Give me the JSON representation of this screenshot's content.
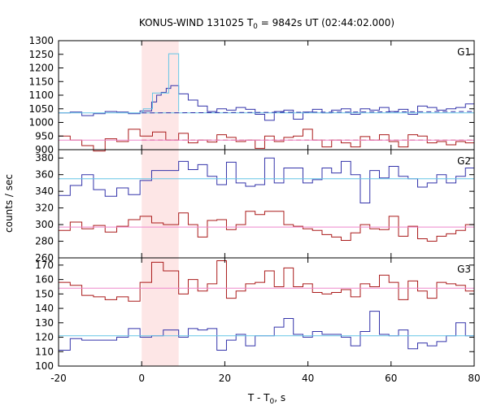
{
  "chart_data": {
    "type": "line",
    "title": "KONUS-WIND 131025 T",
    "title_sub": "0",
    "title_tail": " = 9842s UT (02:44:02.000)",
    "xlabel": "T - T",
    "xlabel_sub": "0",
    "xlabel_tail": ", s",
    "ylabel": "counts / sec",
    "xlim": [
      -20,
      80
    ],
    "x_ticks": [
      "-20",
      "0",
      "20",
      "40",
      "60",
      "80"
    ],
    "x_tick_values": [
      -20,
      0,
      20,
      40,
      60,
      80
    ],
    "highlight_region": [
      0,
      8.9
    ],
    "grid": false,
    "colors": {
      "blue": "#3333aa",
      "red": "#aa1a1a",
      "cyan": "#66c6e6",
      "pink": "#ee88cc",
      "highlight": "#fde6e6"
    },
    "panels": [
      {
        "name": "G1",
        "ylim": [
          900,
          1300
        ],
        "y_ticks": [
          "900",
          "950",
          "1000",
          "1050",
          "1100",
          "1150",
          "1200",
          "1250",
          "1300"
        ],
        "y_tick_values": [
          900,
          950,
          1000,
          1050,
          1100,
          1150,
          1200,
          1250,
          1300
        ],
        "series": [
          {
            "role": "blue-step",
            "color": "blue",
            "x": [
              -20,
              -17.2,
              -14.4,
              -11.6,
              -8.8,
              -6,
              -3.2,
              -0.4,
              2.4,
              3.6,
              4.7,
              5.9,
              7,
              8.2,
              8.9,
              11.2,
              13.5,
              15.8,
              18.1,
              20.4,
              22.7,
              25,
              27.3,
              29.6,
              31.9,
              34.2,
              36.5,
              38.8,
              41.1,
              43.4,
              45.7,
              48,
              50.3,
              52.6,
              54.9,
              57.2,
              59.5,
              61.8,
              64.1,
              66.4,
              68.7,
              71,
              73.3,
              75.6,
              77.9,
              80
            ],
            "values": [
              1035,
              1038,
              1025,
              1032,
              1040,
              1038,
              1032,
              1042,
              1075,
              1100,
              1110,
              1125,
              1135,
              1135,
              1105,
              1082,
              1060,
              1040,
              1050,
              1045,
              1055,
              1048,
              1030,
              1008,
              1040,
              1045,
              1012,
              1038,
              1048,
              1035,
              1045,
              1050,
              1030,
              1050,
              1045,
              1055,
              1040,
              1048,
              1030,
              1060,
              1055,
              1045,
              1050,
              1055,
              1068,
              1055
            ]
          },
          {
            "role": "cyan-step",
            "color": "cyan",
            "x": [
              0,
              0.4,
              2.6,
              5,
              6.5,
              8.9
            ],
            "values": [
              1040,
              1050,
              1108,
              1108,
              1252,
              1040
            ]
          },
          {
            "role": "red-step",
            "color": "red",
            "x": [
              -20,
              -17.2,
              -14.4,
              -11.6,
              -8.8,
              -6,
              -3.2,
              -0.4,
              2.6,
              5.8,
              8.9,
              11.2,
              13.5,
              15.8,
              18.1,
              20.4,
              22.7,
              25,
              27.3,
              29.6,
              31.9,
              34.2,
              36.5,
              38.8,
              41.1,
              43.4,
              45.7,
              48,
              50.3,
              52.6,
              54.9,
              57.2,
              59.5,
              61.8,
              64.1,
              66.4,
              68.7,
              71,
              73.3,
              75.6,
              77.9,
              80
            ],
            "values": [
              950,
              935,
              915,
              895,
              940,
              930,
              975,
              950,
              965,
              935,
              960,
              925,
              935,
              928,
              955,
              945,
              930,
              935,
              905,
              950,
              930,
              945,
              950,
              975,
              935,
              910,
              935,
              925,
              910,
              948,
              935,
              955,
              930,
              910,
              955,
              950,
              925,
              930,
              918,
              930,
              925,
              930
            ]
          },
          {
            "role": "cyan-mean",
            "color": "cyan",
            "x": [
              -20,
              80
            ],
            "values": [
              1035,
              1035
            ]
          },
          {
            "role": "navy-mean-dashed",
            "color": "blue",
            "x": [
              0,
              80
            ],
            "values": [
              1035,
              1040
            ]
          },
          {
            "role": "red-mean-dashed",
            "color": "red",
            "x": [
              0,
              80
            ],
            "values": [
              935,
              935
            ]
          },
          {
            "role": "pink-mean",
            "color": "pink",
            "x": [
              -20,
              80
            ],
            "values": [
              935,
              935
            ]
          }
        ]
      },
      {
        "name": "G2",
        "ylim": [
          260,
          390
        ],
        "y_ticks": [
          "260",
          "280",
          "300",
          "320",
          "340",
          "360",
          "380"
        ],
        "y_tick_values": [
          260,
          280,
          300,
          320,
          340,
          360,
          380
        ],
        "series": [
          {
            "role": "blue-step",
            "color": "blue",
            "x": [
              -20,
              -17.2,
              -14.4,
              -11.6,
              -8.8,
              -6,
              -3.2,
              -0.4,
              2.4,
              5.2,
              8.9,
              11.2,
              13.5,
              15.8,
              18.1,
              20.4,
              22.7,
              25,
              27.3,
              29.6,
              31.9,
              34.2,
              36.5,
              38.8,
              41.1,
              43.4,
              45.7,
              48,
              50.3,
              52.6,
              54.9,
              57.2,
              59.5,
              61.8,
              64.1,
              66.4,
              68.7,
              71,
              73.3,
              75.6,
              77.9,
              80
            ],
            "values": [
              335,
              347,
              360,
              342,
              334,
              344,
              336,
              353,
              365,
              365,
              376,
              366,
              372,
              358,
              348,
              375,
              350,
              346,
              348,
              380,
              350,
              368,
              368,
              350,
              354,
              368,
              362,
              376,
              360,
              326,
              365,
              356,
              370,
              358,
              355,
              345,
              350,
              360,
              350,
              358,
              368,
              360
            ]
          },
          {
            "role": "red-step",
            "color": "red",
            "x": [
              -20,
              -17.2,
              -14.4,
              -11.6,
              -8.8,
              -6,
              -3.2,
              -0.4,
              2.4,
              5.2,
              8.9,
              11.2,
              13.5,
              15.8,
              18.1,
              20.4,
              22.7,
              25,
              27.3,
              29.6,
              31.9,
              34.2,
              36.5,
              38.8,
              41.1,
              43.4,
              45.7,
              48,
              50.3,
              52.6,
              54.9,
              57.2,
              59.5,
              61.8,
              64.1,
              66.4,
              68.7,
              71,
              73.3,
              75.6,
              77.9,
              80
            ],
            "values": [
              293,
              303,
              295,
              299,
              291,
              298,
              306,
              310,
              302,
              300,
              314,
              300,
              285,
              305,
              306,
              294,
              300,
              316,
              312,
              316,
              316,
              300,
              298,
              295,
              293,
              288,
              285,
              281,
              290,
              300,
              295,
              294,
              310,
              286,
              298,
              283,
              280,
              286,
              289,
              293,
              300,
              295
            ]
          },
          {
            "role": "cyan-mean",
            "color": "cyan",
            "x": [
              -20,
              80
            ],
            "values": [
              355,
              355
            ]
          },
          {
            "role": "pink-mean",
            "color": "pink",
            "x": [
              -20,
              80
            ],
            "values": [
              297,
              297
            ]
          }
        ]
      },
      {
        "name": "G3",
        "ylim": [
          100,
          175
        ],
        "y_ticks": [
          "100",
          "110",
          "120",
          "130",
          "140",
          "150",
          "160",
          "170"
        ],
        "y_tick_values": [
          100,
          110,
          120,
          130,
          140,
          150,
          160,
          170
        ],
        "series": [
          {
            "role": "red-step",
            "color": "red",
            "x": [
              -20,
              -17.2,
              -14.4,
              -11.6,
              -8.8,
              -6,
              -3.2,
              -0.4,
              2.4,
              5.2,
              8.9,
              11.2,
              13.5,
              15.8,
              18.1,
              20.4,
              22.7,
              25,
              27.3,
              29.6,
              31.9,
              34.2,
              36.5,
              38.8,
              41.1,
              43.4,
              45.7,
              48,
              50.3,
              52.6,
              54.9,
              57.2,
              59.5,
              61.8,
              64.1,
              66.4,
              68.7,
              71,
              73.3,
              75.6,
              77.9,
              80
            ],
            "values": [
              158,
              156,
              149,
              148,
              146,
              148,
              145,
              158,
              172,
              166,
              150,
              160,
              152,
              157,
              173,
              147,
              152,
              157,
              158,
              166,
              155,
              168,
              155,
              157,
              151,
              150,
              151,
              153,
              148,
              157,
              155,
              163,
              158,
              146,
              159,
              152,
              147,
              158,
              157,
              156,
              152,
              155
            ]
          },
          {
            "role": "blue-step",
            "color": "blue",
            "x": [
              -20,
              -17.2,
              -14.4,
              -11.6,
              -8.8,
              -6,
              -3.2,
              -0.4,
              2.4,
              5.2,
              8.9,
              11.2,
              13.5,
              15.8,
              18.1,
              20.4,
              22.7,
              25,
              27.3,
              29.6,
              31.9,
              34.2,
              36.5,
              38.8,
              41.1,
              43.4,
              45.7,
              48,
              50.3,
              52.6,
              54.9,
              57.2,
              59.5,
              61.8,
              64.1,
              66.4,
              68.7,
              71,
              73.3,
              75.6,
              77.9,
              80
            ],
            "values": [
              111,
              119,
              118,
              118,
              118,
              120,
              126,
              120,
              121,
              125,
              120,
              126,
              125,
              126,
              111,
              118,
              122,
              114,
              121,
              121,
              127,
              133,
              122,
              120,
              124,
              122,
              122,
              120,
              114,
              124,
              138,
              122,
              121,
              125,
              112,
              116,
              114,
              117,
              121,
              130,
              121,
              122
            ]
          },
          {
            "role": "pink-mean",
            "color": "pink",
            "x": [
              -20,
              80
            ],
            "values": [
              154,
              154
            ]
          },
          {
            "role": "cyan-mean",
            "color": "cyan",
            "x": [
              -20,
              80
            ],
            "values": [
              121,
              121
            ]
          }
        ]
      }
    ]
  }
}
